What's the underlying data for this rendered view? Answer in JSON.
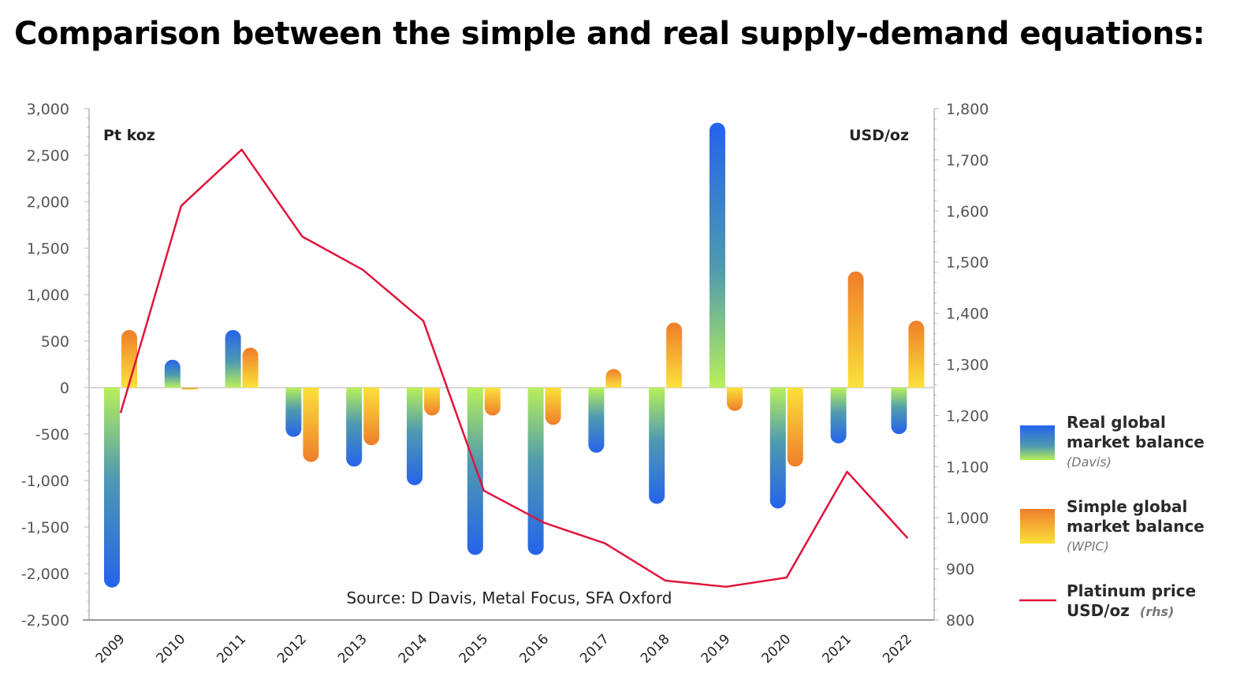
{
  "page": {
    "title": "Comparison between the simple and real supply-demand equations:"
  },
  "chart_data": {
    "type": "bar",
    "title": "Comparison between the simple and real supply-demand equations:",
    "categories": [
      "2009",
      "2010",
      "2011",
      "2012",
      "2013",
      "2014",
      "2015",
      "2016",
      "2017",
      "2018",
      "2019",
      "2020",
      "2021",
      "2022"
    ],
    "series": [
      {
        "name": "Real global market balance",
        "source": "(Davis)",
        "type": "bar",
        "axis": "left",
        "colors": [
          "#2563eb",
          "#b8f05a"
        ],
        "values": [
          -2150,
          300,
          620,
          -530,
          -850,
          -1050,
          -1800,
          -1800,
          -700,
          -1250,
          2850,
          -1300,
          -600,
          -500
        ]
      },
      {
        "name": "Simple global market balance",
        "source": "(WPIC)",
        "type": "bar",
        "axis": "left",
        "colors": [
          "#ef7d2a",
          "#fbe13a"
        ],
        "values": [
          620,
          -20,
          430,
          -800,
          -620,
          -300,
          -300,
          -400,
          200,
          700,
          -250,
          -850,
          1250,
          720
        ]
      },
      {
        "name": "Platinum price USD/oz",
        "source": "(rhs)",
        "type": "line",
        "axis": "right",
        "color": "#e0143c",
        "values": [
          1205,
          1610,
          1720,
          1550,
          1485,
          1385,
          1053,
          990,
          950,
          877,
          865,
          883,
          1090,
          960
        ]
      }
    ],
    "left_axis": {
      "label": "Pt koz",
      "range": [
        -2500,
        3000
      ],
      "ticks": [
        3000,
        2500,
        2000,
        1500,
        1000,
        500,
        0,
        -500,
        -1000,
        -1500,
        -2000,
        -2500
      ],
      "tick_labels": [
        "3,000",
        "2,500",
        "2,000",
        "1,500",
        "1,000",
        "500",
        "0",
        "-500",
        "-1,000",
        "-1,500",
        "-2,000",
        "-2,500"
      ]
    },
    "right_axis": {
      "label": "USD/oz",
      "range": [
        800,
        1800
      ],
      "ticks": [
        1800,
        1700,
        1600,
        1500,
        1400,
        1300,
        1200,
        1100,
        1000,
        900,
        800
      ],
      "tick_labels": [
        "1,800",
        "1,700",
        "1,600",
        "1,500",
        "1,400",
        "1,300",
        "1,200",
        "1,100",
        "1,000",
        "900",
        "800"
      ]
    },
    "source": "Source: D Davis, Metal Focus, SFA Oxford",
    "legend": {
      "placement": "right",
      "items": [
        {
          "title_line1": "Real global",
          "title_line2": "market balance",
          "sub": "(Davis)"
        },
        {
          "title_line1": "Simple global",
          "title_line2": "market balance",
          "sub": "(WPIC)"
        },
        {
          "title_line1": "Platinum price",
          "title_line2": "USD/oz",
          "sub": "(rhs)"
        }
      ]
    },
    "grid": false
  }
}
